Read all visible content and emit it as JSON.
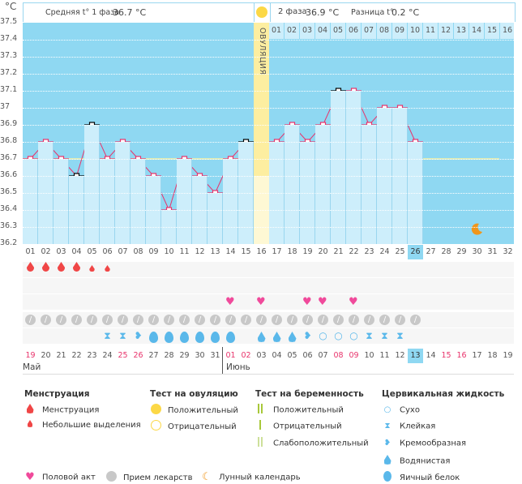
{
  "header": {
    "unit": "°C",
    "phase1_label": "Средняя t° 1 фаза",
    "phase1_value": "36.7 °C",
    "phase2_label": "2 фаза",
    "phase2_value": "36.9 °C",
    "diff_label": "Разница t°",
    "diff_value": "0.2 °C",
    "ovulation_label": "ОВУЛЯЦИЯ"
  },
  "colors": {
    "bg": "#8fd8f2",
    "bar": "#cdeefb",
    "line": "#e8336b",
    "ovulation": "#fdeea0",
    "coverline": "#f5f0a0",
    "today": "#8fd8f2"
  },
  "chart_data": {
    "type": "line",
    "title": "",
    "xlabel": "",
    "ylabel": "°C",
    "ylim": [
      36.2,
      37.5
    ],
    "yticks": [
      "37.5",
      "37.4",
      "37.3",
      "37.2",
      "37.1",
      "37",
      "36.9",
      "36.8",
      "36.7",
      "36.6",
      "36.5",
      "36.4",
      "36.3",
      "36.2"
    ],
    "x": [
      "01",
      "02",
      "03",
      "04",
      "05",
      "06",
      "07",
      "08",
      "09",
      "10",
      "11",
      "12",
      "13",
      "14",
      "15",
      "16",
      "17",
      "18",
      "19",
      "20",
      "21",
      "22",
      "23",
      "24",
      "25",
      "26",
      "27",
      "28",
      "29",
      "30",
      "31",
      "32"
    ],
    "temps": [
      36.7,
      36.8,
      36.7,
      36.6,
      36.9,
      36.7,
      36.8,
      36.7,
      36.6,
      36.4,
      36.7,
      36.6,
      36.5,
      36.7,
      36.8,
      36.6,
      36.8,
      36.9,
      36.8,
      36.9,
      37.1,
      37.1,
      36.9,
      37.0,
      37.0,
      36.8
    ],
    "excluded_days": [
      4,
      5,
      15,
      21
    ],
    "coverline": 36.7,
    "ovulation_day": 16,
    "today_day": 26,
    "moon_day": 30,
    "luteal_labels": [
      "01",
      "02",
      "03",
      "04",
      "05",
      "06",
      "07",
      "08",
      "09",
      "10",
      "11",
      "12",
      "13",
      "14",
      "15",
      "16"
    ]
  },
  "calendar": {
    "dates": [
      "19",
      "20",
      "21",
      "22",
      "23",
      "24",
      "25",
      "26",
      "27",
      "28",
      "29",
      "30",
      "31",
      "01",
      "02",
      "03",
      "04",
      "05",
      "06",
      "07",
      "08",
      "09",
      "10",
      "11",
      "12",
      "13",
      "14",
      "15",
      "16",
      "17",
      "18",
      "19"
    ],
    "red": [
      0,
      6,
      7,
      13,
      14,
      20,
      21,
      27,
      28
    ],
    "months": [
      "Май",
      "Июнь"
    ],
    "menstruation": [
      "big",
      "big",
      "big",
      "big",
      "small",
      "small"
    ],
    "hearts": [
      14,
      16,
      19,
      20,
      22
    ],
    "pills_days": 26,
    "fluid": {
      "6": "sticky",
      "7": "sticky",
      "8": "creamy",
      "9": "egg",
      "10": "egg",
      "11": "egg",
      "12": "egg",
      "13": "egg",
      "14": "egg",
      "16": "watery",
      "17": "watery",
      "18": "watery",
      "19": "creamy",
      "20": "dry",
      "21": "dry",
      "22": "dry",
      "23": "sticky",
      "24": "sticky",
      "25": "sticky"
    }
  },
  "legend": {
    "menses_title": "Менструация",
    "menses": "Менструация",
    "spotting": "Небольшие выделения",
    "ov_title": "Тест на овуляцию",
    "ov_pos": "Положительный",
    "ov_neg": "Отрицательный",
    "preg_title": "Тест на беременность",
    "preg_pos": "Положительный",
    "preg_neg": "Отрицательный",
    "preg_weak": "Слабоположительный",
    "cf_title": "Цервикальная жидкость",
    "dry": "Сухо",
    "sticky": "Клейкая",
    "creamy": "Кремообразная",
    "watery": "Водянистая",
    "egg": "Яичный белок",
    "sex": "Половой акт",
    "meds": "Прием лекарств",
    "moon": "Лунный календарь"
  }
}
